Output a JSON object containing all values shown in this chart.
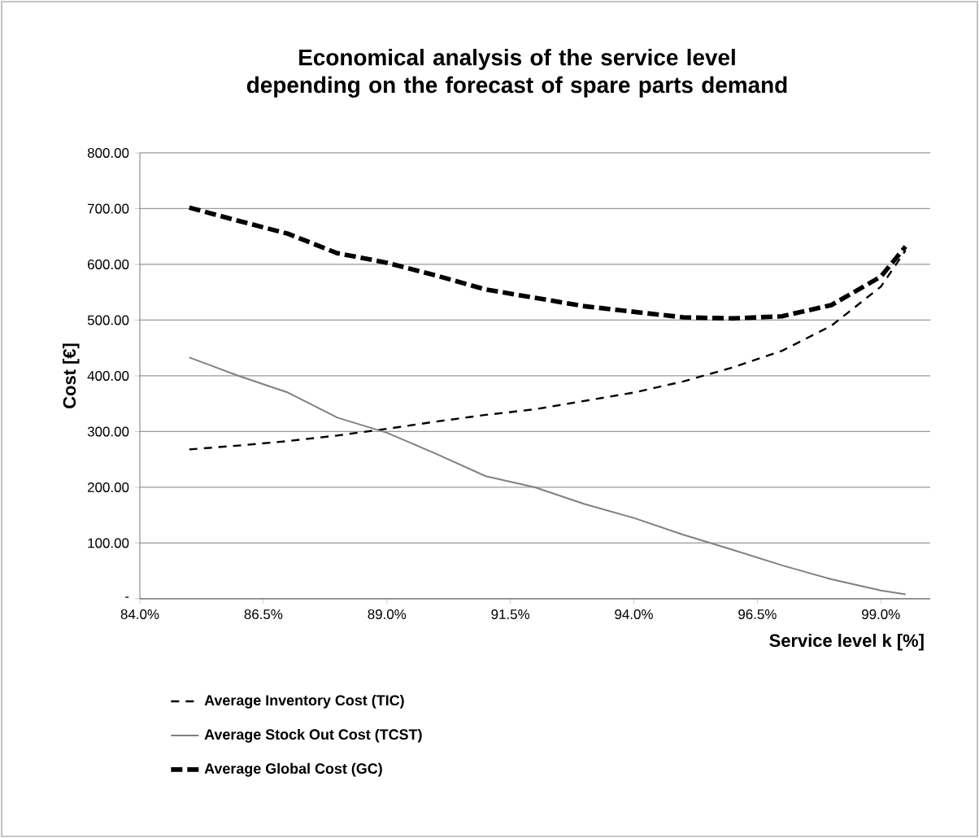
{
  "chart_data": {
    "type": "line",
    "title": "Economical analysis of the service level depending on the forecast of spare parts  demand",
    "xlabel": "Service level k [%]",
    "ylabel": "Cost [€]",
    "x": [
      85,
      86,
      87,
      88,
      89,
      90,
      91,
      92,
      93,
      94,
      95,
      96,
      97,
      98,
      99,
      99.5
    ],
    "series": [
      {
        "name": "Average Inventory Cost (TIC)",
        "color": "#000000",
        "line_style": "dashed",
        "values": [
          268,
          275,
          283,
          293,
          305,
          318,
          330,
          340,
          355,
          370,
          390,
          415,
          445,
          490,
          560,
          625
        ]
      },
      {
        "name": "Average Stock Out Cost (TCST)",
        "color": "#808080",
        "line_style": "solid",
        "values": [
          433,
          400,
          370,
          325,
          298,
          260,
          220,
          200,
          170,
          145,
          115,
          88,
          60,
          35,
          15,
          8
        ]
      },
      {
        "name": "Average Global Cost (GC)",
        "color": "#000000",
        "line_style": "dashed",
        "values": [
          702,
          678,
          655,
          620,
          603,
          580,
          555,
          540,
          525,
          515,
          505,
          503,
          507,
          527,
          578,
          632
        ]
      }
    ],
    "xlim": [
      84,
      100
    ],
    "ylim": [
      0,
      800
    ],
    "xticks": [
      {
        "value": 84,
        "label": "84.0%"
      },
      {
        "value": 86.5,
        "label": "86.5%"
      },
      {
        "value": 89,
        "label": "89.0%"
      },
      {
        "value": 91.5,
        "label": "91.5%"
      },
      {
        "value": 94,
        "label": "94.0%"
      },
      {
        "value": 96.5,
        "label": "96.5%"
      },
      {
        "value": 99,
        "label": "99.0%"
      }
    ],
    "yticks": [
      {
        "value": 0,
        "label": "-"
      },
      {
        "value": 100,
        "label": "100.00"
      },
      {
        "value": 200,
        "label": "200.00"
      },
      {
        "value": 300,
        "label": "300.00"
      },
      {
        "value": 400,
        "label": "400.00"
      },
      {
        "value": 500,
        "label": "500.00"
      },
      {
        "value": 600,
        "label": "600.00"
      },
      {
        "value": 700,
        "label": "700.00"
      },
      {
        "value": 800,
        "label": "800.00"
      }
    ],
    "grid": "y",
    "legend": "bottom left",
    "marker": "none"
  }
}
